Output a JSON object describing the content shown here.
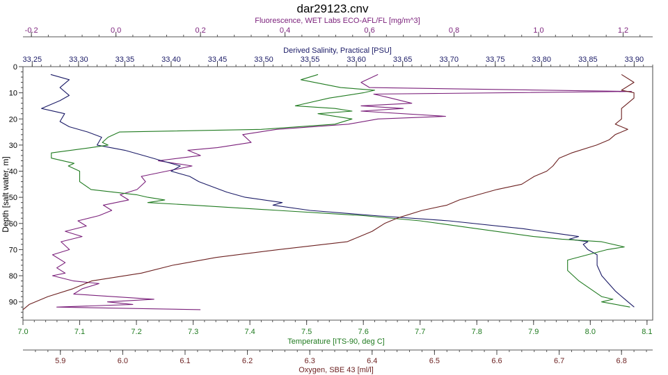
{
  "chart_data": {
    "type": "line",
    "title": "dar29123.cnv",
    "y_axis": {
      "label": "Depth [salt water, m]",
      "range": [
        0,
        97
      ],
      "ticks": [
        0,
        10,
        20,
        30,
        40,
        50,
        60,
        70,
        80,
        90
      ],
      "inverted": true
    },
    "axes": {
      "fluorescence": {
        "label": "Fluorescence, WET Labs ECO-AFL/FL [mg/m^3]",
        "range": [
          -0.22,
          1.27
        ],
        "ticks": [
          -0.2,
          0.0,
          0.2,
          0.4,
          0.6,
          0.8,
          1.0,
          1.2
        ],
        "tick_labels": [
          "-0.2",
          "0.0",
          "0.2",
          "0.4",
          "0.6",
          "0.8",
          "1.0",
          "1.2"
        ],
        "color": "#7a1f7a"
      },
      "salinity": {
        "label": "Derived Salinity, Practical [PSU]",
        "range": [
          33.24,
          33.92
        ],
        "ticks": [
          33.25,
          33.3,
          33.35,
          33.4,
          33.45,
          33.5,
          33.55,
          33.6,
          33.65,
          33.7,
          33.75,
          33.8,
          33.85,
          33.9
        ],
        "tick_labels": [
          "33.25",
          "33.30",
          "33.35",
          "33.40",
          "33.45",
          "33.50",
          "33.55",
          "33.60",
          "33.65",
          "33.70",
          "33.75",
          "33.80",
          "33.85",
          "33.90"
        ],
        "color": "#1a1a66"
      },
      "temperature": {
        "label": "Temperature [ITS-90, deg C]",
        "range": [
          7.0,
          8.11
        ],
        "ticks": [
          7.0,
          7.1,
          7.2,
          7.3,
          7.4,
          7.5,
          7.6,
          7.7,
          7.8,
          7.9,
          8.0,
          8.1
        ],
        "tick_labels": [
          "7.0",
          "7.1",
          "7.2",
          "7.3",
          "7.4",
          "7.5",
          "7.6",
          "7.7",
          "7.8",
          "7.9",
          "8.0",
          "8.1"
        ],
        "color": "#1f7a1f"
      },
      "oxygen": {
        "label": "Oxygen, SBE 43 [ml/l]",
        "range": [
          5.84,
          6.85
        ],
        "ticks": [
          5.9,
          6.0,
          6.1,
          6.2,
          6.3,
          6.4,
          6.5,
          6.6,
          6.7,
          6.8
        ],
        "tick_labels": [
          "5.9",
          "6.0",
          "6.1",
          "6.2",
          "6.3",
          "6.4",
          "6.5",
          "6.6",
          "6.7",
          "6.8"
        ],
        "color": "#6b1f1f"
      }
    },
    "series": [
      {
        "name": "Fluorescence",
        "axis": "fluorescence",
        "color": "#7a1f7a",
        "points": [
          [
            0.62,
            3
          ],
          [
            0.58,
            6
          ],
          [
            0.6,
            8
          ],
          [
            1.22,
            9.5
          ],
          [
            0.61,
            10.5
          ],
          [
            0.65,
            12
          ],
          [
            0.7,
            14
          ],
          [
            0.58,
            15
          ],
          [
            0.68,
            16
          ],
          [
            0.58,
            17
          ],
          [
            0.78,
            19
          ],
          [
            0.62,
            20
          ],
          [
            0.55,
            22
          ],
          [
            0.38,
            24
          ],
          [
            0.3,
            26
          ],
          [
            0.32,
            29
          ],
          [
            0.24,
            31
          ],
          [
            0.17,
            32
          ],
          [
            0.2,
            34
          ],
          [
            0.1,
            36
          ],
          [
            0.18,
            38
          ],
          [
            0.12,
            40
          ],
          [
            0.06,
            42
          ],
          [
            0.07,
            44
          ],
          [
            0.05,
            47
          ],
          [
            0.01,
            49
          ],
          [
            0.03,
            51
          ],
          [
            -0.03,
            53
          ],
          [
            -0.01,
            55
          ],
          [
            -0.04,
            57
          ],
          [
            -0.09,
            59
          ],
          [
            -0.07,
            61
          ],
          [
            -0.12,
            63
          ],
          [
            -0.08,
            65
          ],
          [
            -0.13,
            67
          ],
          [
            -0.11,
            70
          ],
          [
            -0.15,
            72
          ],
          [
            -0.12,
            75
          ],
          [
            -0.14,
            77
          ],
          [
            -0.12,
            79
          ],
          [
            -0.15,
            80
          ],
          [
            -0.1,
            82
          ],
          [
            -0.04,
            83
          ],
          [
            -0.08,
            85
          ],
          [
            -0.1,
            87
          ],
          [
            0.09,
            89
          ],
          [
            -0.02,
            90
          ],
          [
            0.04,
            91
          ],
          [
            -0.14,
            92
          ],
          [
            0.2,
            93
          ]
        ]
      },
      {
        "name": "Salinity",
        "axis": "salinity",
        "color": "#1a1a66",
        "points": [
          [
            33.27,
            3
          ],
          [
            33.29,
            5
          ],
          [
            33.28,
            8
          ],
          [
            33.29,
            11
          ],
          [
            33.28,
            13
          ],
          [
            33.26,
            16
          ],
          [
            33.285,
            18
          ],
          [
            33.28,
            21
          ],
          [
            33.29,
            23
          ],
          [
            33.31,
            25
          ],
          [
            33.325,
            27
          ],
          [
            33.32,
            30
          ],
          [
            33.35,
            32
          ],
          [
            33.37,
            34
          ],
          [
            33.39,
            36
          ],
          [
            33.41,
            38
          ],
          [
            33.4,
            40
          ],
          [
            33.42,
            42
          ],
          [
            33.43,
            44
          ],
          [
            33.445,
            46
          ],
          [
            33.46,
            48
          ],
          [
            33.48,
            50
          ],
          [
            33.52,
            52
          ],
          [
            33.51,
            53
          ],
          [
            33.55,
            55
          ],
          [
            33.62,
            57
          ],
          [
            33.7,
            59
          ],
          [
            33.78,
            62
          ],
          [
            33.82,
            64
          ],
          [
            33.84,
            65
          ],
          [
            33.83,
            66
          ],
          [
            33.85,
            67
          ],
          [
            33.845,
            68
          ],
          [
            33.85,
            70
          ],
          [
            33.86,
            72
          ],
          [
            33.86,
            76
          ],
          [
            33.865,
            80
          ],
          [
            33.87,
            82
          ],
          [
            33.88,
            86
          ],
          [
            33.89,
            89
          ],
          [
            33.9,
            92
          ]
        ]
      },
      {
        "name": "Temperature",
        "axis": "temperature",
        "color": "#1f7a1f",
        "points": [
          [
            7.52,
            3
          ],
          [
            7.49,
            5
          ],
          [
            7.56,
            8
          ],
          [
            7.62,
            9
          ],
          [
            7.6,
            10
          ],
          [
            7.54,
            12
          ],
          [
            7.48,
            15
          ],
          [
            7.55,
            16
          ],
          [
            7.58,
            17
          ],
          [
            7.52,
            18
          ],
          [
            7.58,
            20
          ],
          [
            7.55,
            22
          ],
          [
            7.42,
            24
          ],
          [
            7.17,
            25
          ],
          [
            7.15,
            27
          ],
          [
            7.14,
            29
          ],
          [
            7.15,
            30
          ],
          [
            7.12,
            31
          ],
          [
            7.05,
            33
          ],
          [
            7.05,
            35
          ],
          [
            7.09,
            37
          ],
          [
            7.08,
            38
          ],
          [
            7.1,
            40
          ],
          [
            7.1,
            44
          ],
          [
            7.12,
            47
          ],
          [
            7.2,
            49
          ],
          [
            7.22,
            50
          ],
          [
            7.25,
            51
          ],
          [
            7.22,
            52
          ],
          [
            7.3,
            53
          ],
          [
            7.45,
            55
          ],
          [
            7.6,
            57
          ],
          [
            7.7,
            59
          ],
          [
            7.8,
            62
          ],
          [
            7.9,
            65
          ],
          [
            7.95,
            66
          ],
          [
            8.02,
            67
          ],
          [
            8.06,
            69
          ],
          [
            8.03,
            70
          ],
          [
            7.96,
            74
          ],
          [
            7.96,
            78
          ],
          [
            7.98,
            82
          ],
          [
            8.0,
            85
          ],
          [
            8.02,
            88
          ],
          [
            8.04,
            89
          ],
          [
            8.02,
            90
          ],
          [
            8.07,
            92
          ]
        ]
      },
      {
        "name": "Oxygen",
        "axis": "oxygen",
        "color": "#6b1f1f",
        "points": [
          [
            6.8,
            3
          ],
          [
            6.82,
            6
          ],
          [
            6.8,
            9
          ],
          [
            6.82,
            10
          ],
          [
            6.82,
            12
          ],
          [
            6.81,
            14
          ],
          [
            6.8,
            16
          ],
          [
            6.8,
            18
          ],
          [
            6.8,
            20
          ],
          [
            6.79,
            22
          ],
          [
            6.81,
            24
          ],
          [
            6.79,
            26
          ],
          [
            6.78,
            28
          ],
          [
            6.76,
            30
          ],
          [
            6.72,
            33
          ],
          [
            6.7,
            35
          ],
          [
            6.69,
            38
          ],
          [
            6.68,
            40
          ],
          [
            6.66,
            42
          ],
          [
            6.64,
            45
          ],
          [
            6.6,
            47
          ],
          [
            6.57,
            49
          ],
          [
            6.54,
            51
          ],
          [
            6.52,
            53
          ],
          [
            6.48,
            55
          ],
          [
            6.44,
            58
          ],
          [
            6.42,
            60
          ],
          [
            6.4,
            63
          ],
          [
            6.38,
            65
          ],
          [
            6.36,
            67
          ],
          [
            6.25,
            70
          ],
          [
            6.15,
            73
          ],
          [
            6.08,
            76
          ],
          [
            6.03,
            79
          ],
          [
            5.95,
            82
          ],
          [
            5.92,
            85
          ],
          [
            5.88,
            88
          ],
          [
            5.85,
            91
          ],
          [
            5.84,
            93
          ]
        ]
      }
    ]
  }
}
